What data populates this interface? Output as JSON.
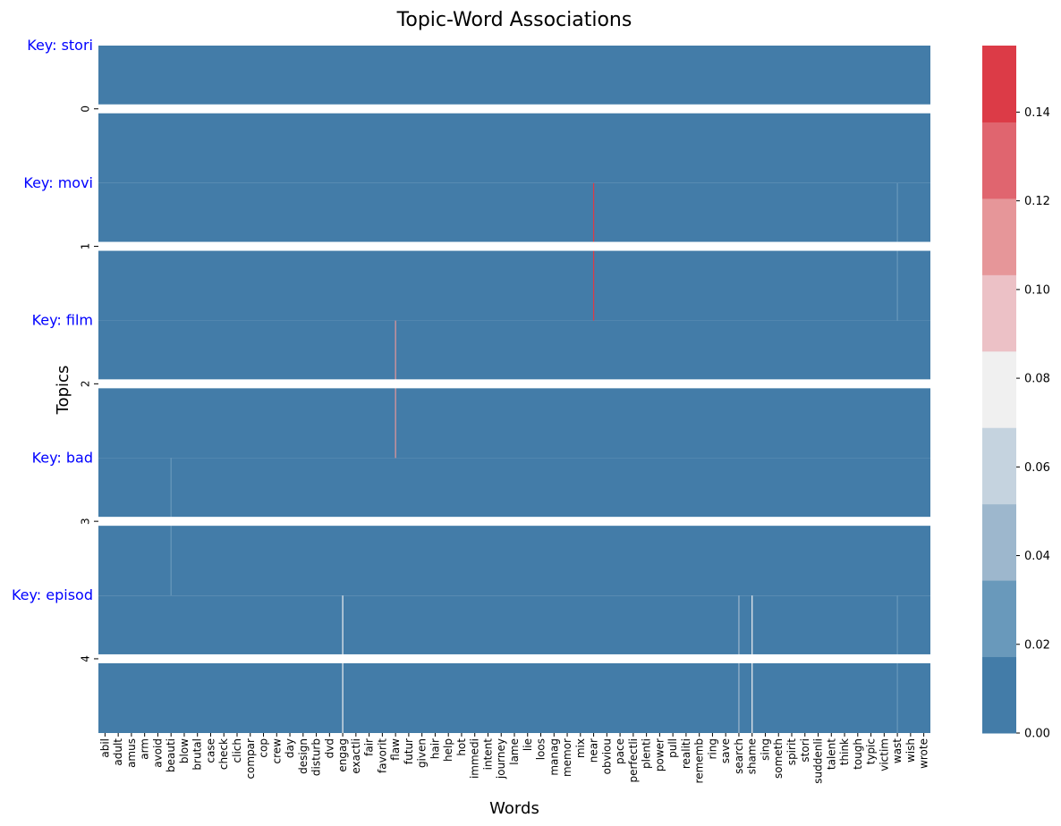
{
  "chart_data": {
    "type": "heatmap",
    "title": "Topic-Word Associations",
    "xlabel": "Words",
    "ylabel": "Topics",
    "topics": [
      "0",
      "1",
      "2",
      "3",
      "4"
    ],
    "key_labels": [
      "Key: stori",
      "Key: movi",
      "Key: film",
      "Key: bad",
      "Key: episod"
    ],
    "words": [
      "abil",
      "adult",
      "amus",
      "arm",
      "avoid",
      "beauti",
      "blow",
      "brutal",
      "case",
      "check",
      "clich",
      "compar",
      "cop",
      "crew",
      "day",
      "design",
      "disturb",
      "dvd",
      "engag",
      "exactli",
      "fair",
      "favorit",
      "flaw",
      "futur",
      "given",
      "hair",
      "help",
      "hot",
      "immedi",
      "intent",
      "journey",
      "lame",
      "lie",
      "loos",
      "manag",
      "memor",
      "mix",
      "near",
      "obviou",
      "pace",
      "perfectli",
      "plenti",
      "power",
      "pull",
      "realiti",
      "rememb",
      "ring",
      "save",
      "search",
      "shame",
      "sing",
      "someth",
      "spirit",
      "stori",
      "suddenli",
      "talent",
      "think",
      "tough",
      "typic",
      "victim",
      "wast",
      "wish",
      "wrote"
    ],
    "nonzero_cells": [
      {
        "topic": "1",
        "word": "near",
        "value": 0.15
      },
      {
        "topic": "1",
        "word": "wast",
        "value": 0.03
      },
      {
        "topic": "2",
        "word": "flaw",
        "value": 0.12
      },
      {
        "topic": "3",
        "word": "beauti",
        "value": 0.03
      },
      {
        "topic": "4",
        "word": "engag",
        "value": 0.08
      },
      {
        "topic": "4",
        "word": "search",
        "value": 0.05
      },
      {
        "topic": "4",
        "word": "shame",
        "value": 0.08
      },
      {
        "topic": "4",
        "word": "wast",
        "value": 0.03
      }
    ],
    "colorbar": {
      "min": 0.0,
      "max": 0.155,
      "ticks": [
        "0.00",
        "0.02",
        "0.04",
        "0.06",
        "0.08",
        "0.10",
        "0.12",
        "0.14"
      ],
      "colors": [
        "#437ca8",
        "#6999bb",
        "#9db7cd",
        "#c5d3df",
        "#f0f0f0",
        "#ecc1c6",
        "#e69699",
        "#e0656f",
        "#dc3b47"
      ]
    },
    "grid": false,
    "legend": "right"
  }
}
